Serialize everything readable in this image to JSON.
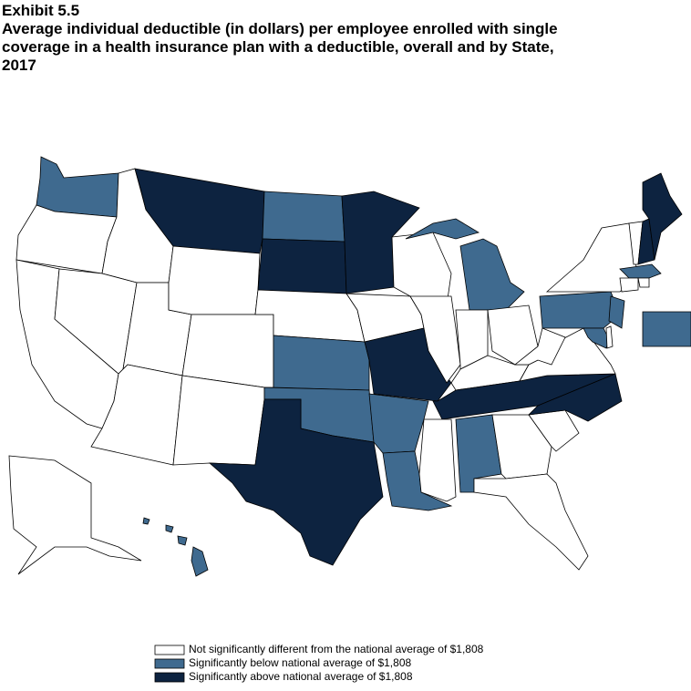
{
  "header": {
    "exhibit": "Exhibit 5.5",
    "title": [
      "Average individual deductible (in dollars) per employee enrolled with single",
      "coverage in a health insurance plan with a deductible, overall and by State,",
      "2017"
    ]
  },
  "legend": [
    {
      "label": "Not significantly different from the national average of $1,808",
      "color": "#ffffff"
    },
    {
      "label": "Significantly below national average of $1,808",
      "color": "#3f6a8f"
    },
    {
      "label": "Significantly above national average of $1,808",
      "color": "#0d2340"
    }
  ]
}
